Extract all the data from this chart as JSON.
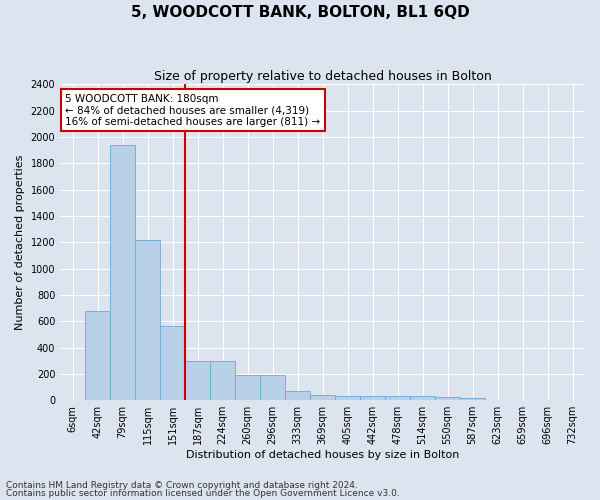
{
  "title": "5, WOODCOTT BANK, BOLTON, BL1 6QD",
  "subtitle": "Size of property relative to detached houses in Bolton",
  "xlabel": "Distribution of detached houses by size in Bolton",
  "ylabel": "Number of detached properties",
  "footnote1": "Contains HM Land Registry data © Crown copyright and database right 2024.",
  "footnote2": "Contains public sector information licensed under the Open Government Licence v3.0.",
  "annotation_title": "5 WOODCOTT BANK: 180sqm",
  "annotation_line1": "← 84% of detached houses are smaller (4,319)",
  "annotation_line2": "16% of semi-detached houses are larger (811) →",
  "bar_labels": [
    "6sqm",
    "42sqm",
    "79sqm",
    "115sqm",
    "151sqm",
    "187sqm",
    "224sqm",
    "260sqm",
    "296sqm",
    "333sqm",
    "369sqm",
    "405sqm",
    "442sqm",
    "478sqm",
    "514sqm",
    "550sqm",
    "587sqm",
    "623sqm",
    "659sqm",
    "696sqm",
    "732sqm"
  ],
  "bar_values": [
    5,
    680,
    1940,
    1220,
    560,
    300,
    300,
    195,
    195,
    70,
    40,
    35,
    35,
    30,
    30,
    25,
    20,
    5,
    5,
    5,
    5
  ],
  "bar_color": "#b8d0e8",
  "bar_edge_color": "#6aaad4",
  "vline_color": "#cc0000",
  "vline_x_index": 5,
  "ylim": [
    0,
    2400
  ],
  "yticks": [
    0,
    200,
    400,
    600,
    800,
    1000,
    1200,
    1400,
    1600,
    1800,
    2000,
    2200,
    2400
  ],
  "background_color": "#dce4f0",
  "plot_bg_color": "#dce4f0",
  "annotation_box_color": "#ffffff",
  "annotation_border_color": "#cc0000",
  "title_fontsize": 11,
  "subtitle_fontsize": 9,
  "axis_label_fontsize": 8,
  "tick_fontsize": 7,
  "annotation_fontsize": 7.5,
  "footnote_fontsize": 6.5
}
